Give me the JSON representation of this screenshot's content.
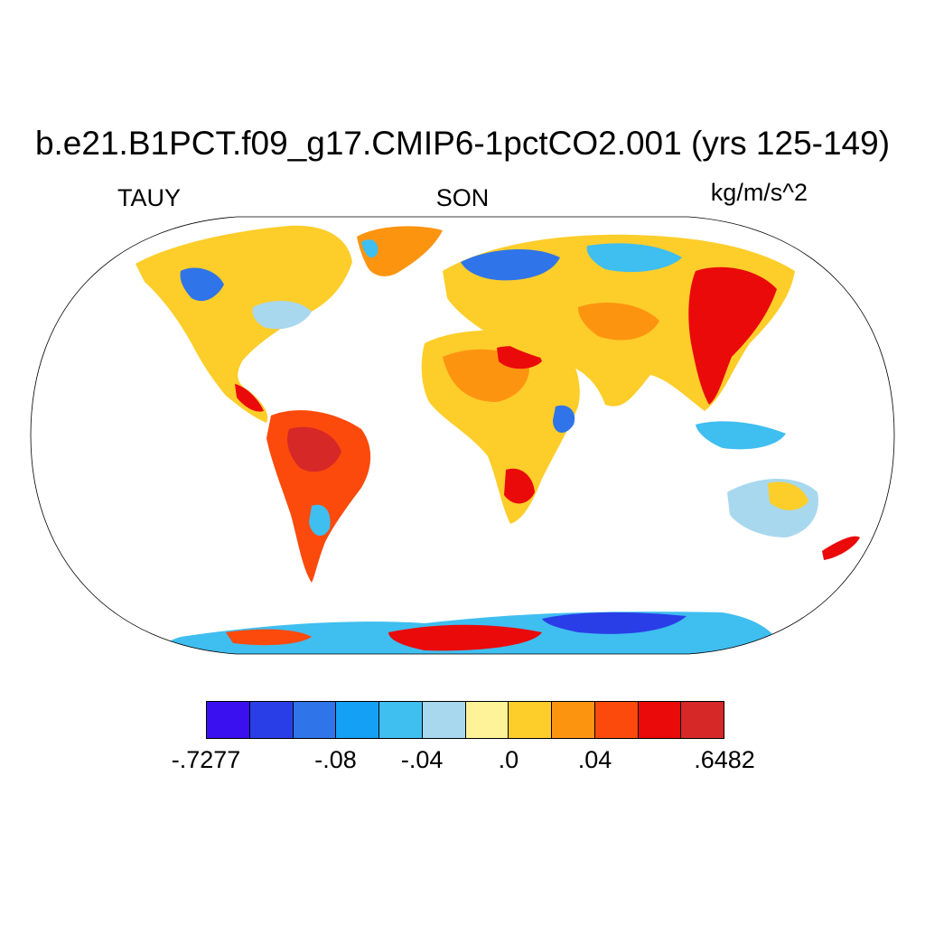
{
  "title": "b.e21.B1PCT.f09_g17.CMIP6-1pctCO2.001 (yrs 125-149)",
  "left_label": "TAUY",
  "center_label": "SON",
  "right_label": "kg/m/s^2",
  "colorbar": {
    "colors": [
      "#3a10f0",
      "#2a3ee8",
      "#2f74e8",
      "#13a0f5",
      "#3fbef0",
      "#a8d8ee",
      "#fff39a",
      "#fdcd2a",
      "#fd9410",
      "#fb4a0c",
      "#ea0a0a",
      "#d72828"
    ],
    "labels": [
      {
        "text": "-.7277",
        "index": 0
      },
      {
        "text": "-.08",
        "index": 3
      },
      {
        "text": "-.04",
        "index": 5
      },
      {
        "text": ".0",
        "index": 7
      },
      {
        "text": ".04",
        "index": 9
      },
      {
        "text": ".6482",
        "index": 12
      }
    ]
  },
  "map": {
    "projection": "Robinson",
    "land_colors": {
      "strong_neg": "#2f74e8",
      "mid_neg": "#3fbef0",
      "weak_neg": "#a8d8ee",
      "weak_pos": "#fff39a",
      "mid_pos": "#fdcd2a",
      "pos": "#fd9410",
      "strong_pos": "#ea0a0a",
      "max_pos": "#d72828"
    }
  }
}
